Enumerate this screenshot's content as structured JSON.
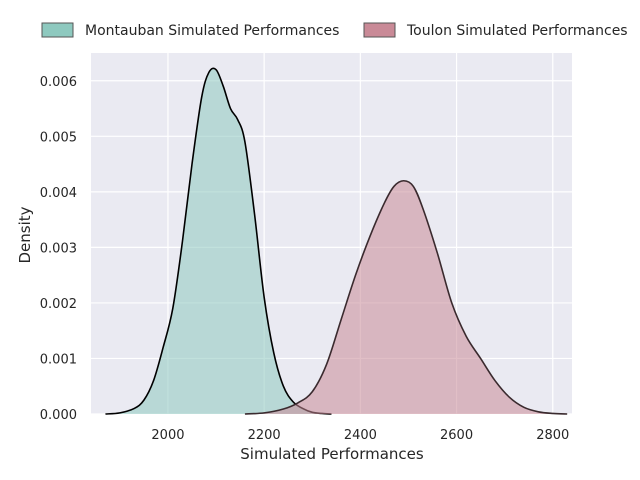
{
  "chart_data": {
    "type": "area",
    "xlabel": "Simulated Performances",
    "ylabel": "Density",
    "xlim": [
      1840,
      2840
    ],
    "ylim": [
      0,
      0.0065
    ],
    "x_ticks": [
      2000,
      2200,
      2400,
      2600,
      2800
    ],
    "x_tick_labels": [
      "2000",
      "2200",
      "2400",
      "2600",
      "2800"
    ],
    "y_ticks": [
      0,
      0.001,
      0.002,
      0.003,
      0.004,
      0.005,
      0.006
    ],
    "y_tick_labels": [
      "0.000",
      "0.001",
      "0.002",
      "0.003",
      "0.004",
      "0.005",
      "0.006"
    ],
    "grid": true,
    "legend_position": "top",
    "series": [
      {
        "name": "Montauban Simulated Performances",
        "fill": "#8ec9bf",
        "line": "#000000",
        "x": [
          1870,
          1900,
          1930,
          1950,
          1970,
          1990,
          2010,
          2030,
          2050,
          2070,
          2085,
          2100,
          2115,
          2130,
          2145,
          2160,
          2180,
          2200,
          2220,
          2240,
          2260,
          2280,
          2300,
          2320,
          2340
        ],
        "y": [
          0,
          2e-05,
          0.0001,
          0.00025,
          0.0006,
          0.0012,
          0.0019,
          0.0031,
          0.0045,
          0.0057,
          0.00615,
          0.0062,
          0.0059,
          0.0055,
          0.0053,
          0.0049,
          0.0036,
          0.0021,
          0.0011,
          0.0005,
          0.00022,
          0.0001,
          3e-05,
          1e-05,
          0
        ]
      },
      {
        "name": "Toulon Simulated Performances",
        "fill": "#c98a97",
        "line": "#3a2a2e",
        "x": [
          2160,
          2200,
          2240,
          2270,
          2300,
          2330,
          2360,
          2390,
          2420,
          2450,
          2470,
          2490,
          2510,
          2530,
          2560,
          2590,
          2620,
          2650,
          2680,
          2710,
          2740,
          2770,
          2800,
          2830
        ],
        "y": [
          0,
          2e-05,
          9e-05,
          0.0002,
          0.0004,
          0.0009,
          0.0017,
          0.0025,
          0.0032,
          0.0038,
          0.0041,
          0.0042,
          0.0041,
          0.0037,
          0.0029,
          0.002,
          0.0014,
          0.001,
          0.0006,
          0.0003,
          0.00012,
          4e-05,
          1e-05,
          0
        ]
      }
    ]
  }
}
